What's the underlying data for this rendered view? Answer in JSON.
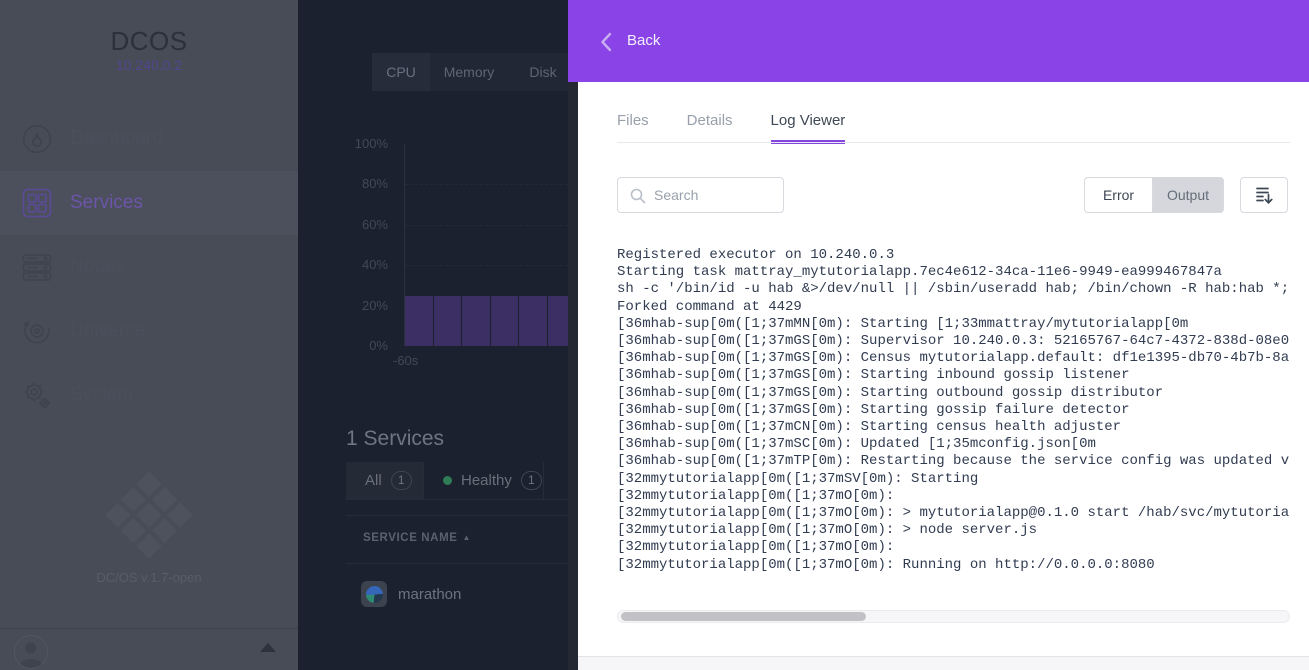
{
  "app": {
    "title": "DCOS",
    "ip": "10.240.0.2",
    "version": "DC/OS v.1.7-open"
  },
  "sidebar": {
    "items": [
      {
        "label": "Dashboard",
        "active": false
      },
      {
        "label": "Services",
        "active": true
      },
      {
        "label": "Nodes",
        "active": false
      },
      {
        "label": "Universe",
        "active": false
      },
      {
        "label": "System",
        "active": false
      }
    ]
  },
  "background": {
    "resource_tabs": [
      {
        "label": "CPU",
        "active": true
      },
      {
        "label": "Memory",
        "active": false
      },
      {
        "label": "Disk",
        "active": false
      }
    ],
    "services_heading": "1 Services",
    "filters": {
      "all_label": "All",
      "all_count": "1",
      "healthy_label": "Healthy",
      "healthy_count": "1"
    },
    "table": {
      "header": "SERVICE NAME",
      "sort": "asc",
      "rows": [
        {
          "name": "marathon"
        }
      ]
    }
  },
  "chart_data": {
    "type": "bar",
    "title": "",
    "yticks": [
      "100%",
      "80%",
      "60%",
      "40%",
      "20%",
      "0%"
    ],
    "xtick": "-60s",
    "values": [
      25,
      25,
      25,
      25,
      25,
      25
    ],
    "ylim": [
      0,
      100
    ],
    "bar_color": "#3b2f63",
    "grid": "dashed-horizontal"
  },
  "panel": {
    "back_label": "Back",
    "tabs": [
      {
        "label": "Files",
        "active": false
      },
      {
        "label": "Details",
        "active": false
      },
      {
        "label": "Log Viewer",
        "active": true
      }
    ],
    "search_placeholder": "Search",
    "toggle": {
      "error_label": "Error",
      "output_label": "Output",
      "selected": "Output"
    },
    "log_lines": [
      "Registered executor on 10.240.0.3",
      "Starting task mattray_mytutorialapp.7ec4e612-34ca-11e6-9949-ea999467847a",
      "sh -c '/bin/id -u hab &>/dev/null || /sbin/useradd hab; /bin/chown -R hab:hab *;",
      "Forked command at 4429",
      "[36mhab-sup[0m([1;37mMN[0m): Starting [1;33mmattray/mytutorialapp[0m",
      "[36mhab-sup[0m([1;37mGS[0m): Supervisor 10.240.0.3: 52165767-64c7-4372-838d-08e0",
      "[36mhab-sup[0m([1;37mGS[0m): Census mytutorialapp.default: df1e1395-db70-4b7b-8a",
      "[36mhab-sup[0m([1;37mGS[0m): Starting inbound gossip listener",
      "[36mhab-sup[0m([1;37mGS[0m): Starting outbound gossip distributor",
      "[36mhab-sup[0m([1;37mGS[0m): Starting gossip failure detector",
      "[36mhab-sup[0m([1;37mCN[0m): Starting census health adjuster",
      "[36mhab-sup[0m([1;37mSC[0m): Updated [1;35mconfig.json[0m",
      "[36mhab-sup[0m([1;37mTP[0m): Restarting because the service config was updated v",
      "[32mmytutorialapp[0m([1;37mSV[0m): Starting",
      "[32mmytutorialapp[0m([1;37mO[0m):",
      "[32mmytutorialapp[0m([1;37mO[0m): > mytutorialapp@0.1.0 start /hab/svc/mytutoria",
      "[32mmytutorialapp[0m([1;37mO[0m): > node server.js",
      "[32mmytutorialapp[0m([1;37mO[0m):",
      "[32mmytutorialapp[0m([1;37mO[0m): Running on http://0.0.0.0:8080"
    ]
  },
  "icons": {
    "back-chevron-icon": "left angle chevron",
    "search-icon": "magnifier",
    "download-log-icon": "document lines with down arrow",
    "sort-asc-icon": "up triangle",
    "caret-up-icon": "up triangle",
    "avatar-icon": "person silhouette",
    "dashboard-icon": "gauge in circle",
    "services-icon": "grid of squares",
    "nodes-icon": "stacked servers",
    "universe-icon": "orbit",
    "system-icon": "gears"
  },
  "colors": {
    "accent_purple": "#8a43e6",
    "tab_underline_purple": "#8347e0",
    "healthy_green": "#2f7d57",
    "bar_purple": "#3b2f63",
    "sidebar_dimmed": "#474c57",
    "content_dimmed": "#1b212e"
  }
}
